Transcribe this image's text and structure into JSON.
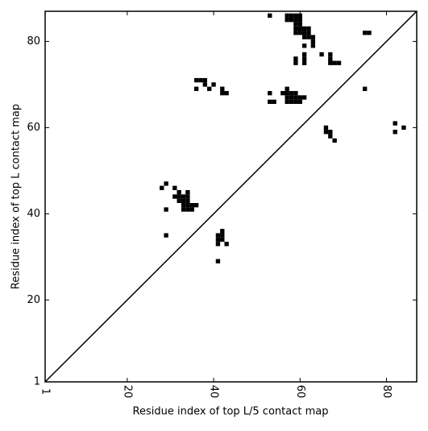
{
  "chart_data": {
    "type": "scatter",
    "x_label": "Residue index of top L/5 contact map",
    "y_label": "Residue index of top L contact map",
    "xlim": [
      1,
      87
    ],
    "ylim": [
      1,
      87
    ],
    "xticks": [
      1,
      20,
      40,
      60,
      80
    ],
    "yticks": [
      1,
      20,
      40,
      60,
      80
    ],
    "color": "#000000",
    "diagonal": true,
    "x": [
      53,
      57,
      58,
      59,
      60,
      57,
      58,
      59,
      60,
      59,
      60,
      59,
      60,
      61,
      62,
      59,
      60,
      61,
      62,
      61,
      62,
      63,
      63,
      63,
      61,
      61,
      61,
      61,
      59,
      59,
      65,
      67,
      67,
      67,
      68,
      69,
      75,
      76,
      75,
      57,
      56,
      57,
      58,
      59,
      57,
      58,
      59,
      60,
      61,
      57,
      58,
      59,
      60,
      53,
      53,
      54,
      36,
      37,
      38,
      38,
      40,
      36,
      39,
      42,
      42,
      43,
      66,
      66,
      67,
      67,
      68,
      82,
      82,
      84,
      29,
      28,
      31,
      32,
      34,
      31,
      32,
      33,
      34,
      32,
      33,
      34,
      33,
      34,
      35,
      36,
      33,
      34,
      35,
      29,
      29,
      42,
      41,
      42,
      41,
      42,
      41,
      43,
      41
    ],
    "values": [
      86,
      86,
      86,
      86,
      86,
      85,
      85,
      85,
      85,
      84,
      84,
      83,
      83,
      83,
      83,
      82,
      82,
      82,
      82,
      81,
      81,
      81,
      80,
      79,
      79,
      77,
      76,
      75,
      76,
      75,
      77,
      77,
      76,
      75,
      75,
      75,
      82,
      82,
      69,
      69,
      68,
      68,
      68,
      68,
      67,
      67,
      67,
      67,
      67,
      66,
      66,
      66,
      66,
      68,
      66,
      66,
      71,
      71,
      71,
      70,
      70,
      69,
      69,
      69,
      68,
      68,
      60,
      59,
      59,
      58,
      57,
      61,
      59,
      60,
      47,
      46,
      46,
      45,
      45,
      44,
      44,
      44,
      44,
      43,
      43,
      43,
      42,
      42,
      42,
      42,
      41,
      41,
      41,
      41,
      35,
      36,
      35,
      35,
      34,
      34,
      33,
      33,
      29
    ]
  }
}
